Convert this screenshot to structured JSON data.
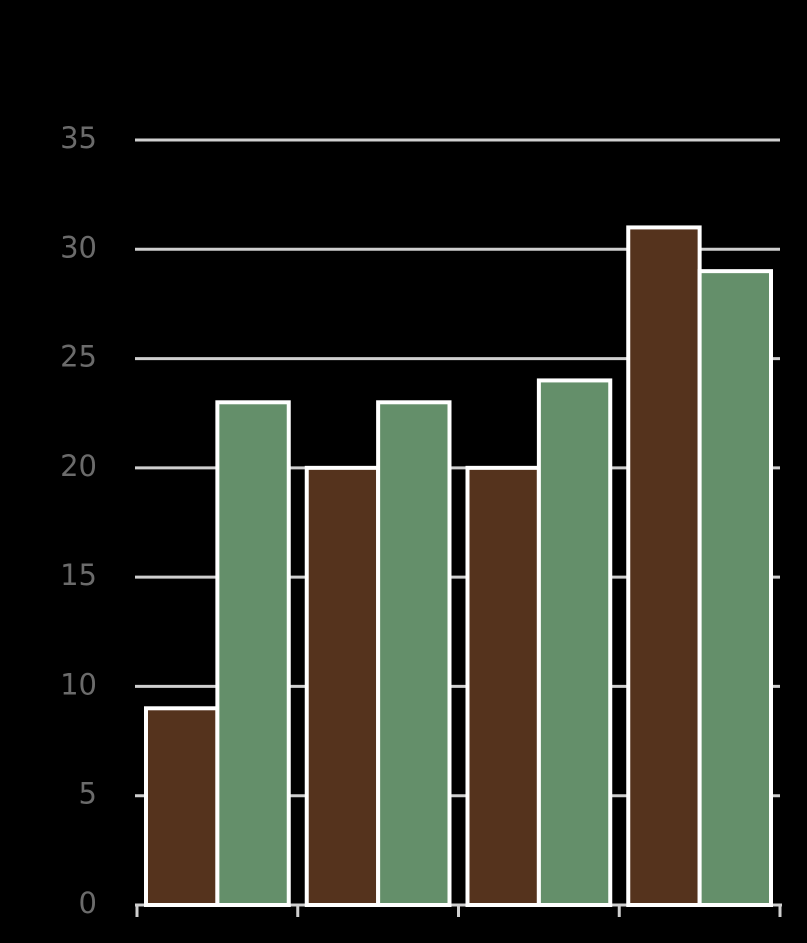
{
  "chart_data": {
    "type": "bar",
    "categories": [
      null,
      null,
      null,
      null
    ],
    "series": [
      {
        "color": "#55331d",
        "values": [
          9,
          20,
          20,
          31
        ]
      },
      {
        "color": "#648f6a",
        "values": [
          23,
          23,
          24,
          29
        ]
      }
    ],
    "ylim": [
      0,
      35
    ],
    "yticks": [
      0,
      5,
      10,
      15,
      20,
      25,
      30,
      35
    ],
    "grid": true
  }
}
